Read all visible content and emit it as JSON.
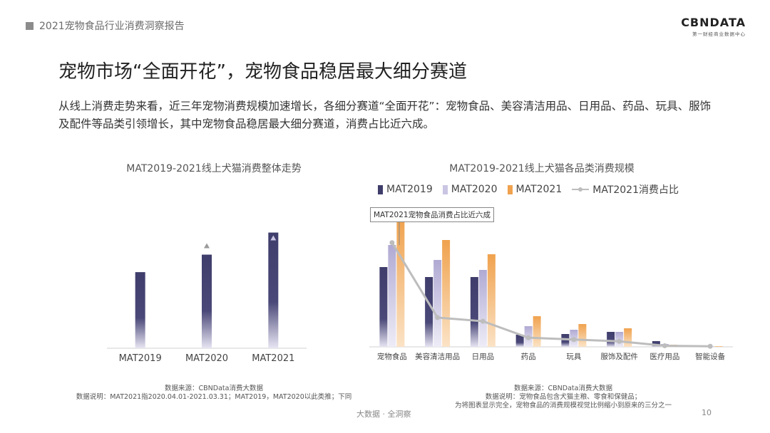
{
  "header": {
    "report_title": "2021宠物食品行业消费洞察报告"
  },
  "brand": {
    "logo_text": "CBNDATA",
    "tagline": "第一财经商业数据中心"
  },
  "slide": {
    "title": "宠物市场“全面开花”，宠物食品稳居最大细分赛道",
    "description": "从线上消费走势来看，近三年宠物消费规模加速增长，各细分赛道“全面开花”：宠物食品、美容清洁用品、日用品、药品、玩具、服饰及配件等品类引领增长，其中宠物食品稳居最大细分赛道，消费占比近六成。"
  },
  "colors": {
    "mat2019": "#3f3d6b",
    "mat2020": "#b8b3d6",
    "mat2021": "#f0a24e",
    "share_line": "#bdbdbd",
    "axis": "#d0d0d0"
  },
  "chart_data": [
    {
      "type": "bar",
      "title": "MAT2019-2021线上犬猫消费整体走势",
      "categories": [
        "MAT2019",
        "MAT2020",
        "MAT2021"
      ],
      "values": [
        100,
        123,
        152
      ],
      "ylim": [
        0,
        160
      ],
      "growth_markers": [
        "MAT2020",
        "MAT2021"
      ],
      "grid": false
    },
    {
      "type": "bar",
      "title": "MAT2019-2021线上犬猫各品类消费规模",
      "categories": [
        "宠物食品",
        "美容清洁用品",
        "日用品",
        "药品",
        "玩具",
        "服饰及配件",
        "医疗用品",
        "智能设备"
      ],
      "series": [
        {
          "name": "MAT2019",
          "values": [
            112,
            98,
            98,
            17,
            18,
            21,
            8,
            1
          ]
        },
        {
          "name": "MAT2020",
          "values": [
            143,
            122,
            108,
            29,
            24,
            21,
            4,
            1
          ]
        },
        {
          "name": "MAT2021",
          "values": [
            180,
            150,
            130,
            43,
            32,
            26,
            3,
            1
          ]
        }
      ],
      "line_series": {
        "name": "MAT2021消费占比",
        "values": [
          57,
          16,
          14,
          5,
          4,
          3,
          0.6,
          0.3
        ]
      },
      "ylim": [
        0,
        180
      ],
      "legend_position": "top",
      "annotation": "MAT2021宠物食品消费占比近六成",
      "grid": false
    }
  ],
  "notes": {
    "left": [
      "数据来源：CBNData消费大数据",
      "数据说明：MAT2021指2020.04.01-2021.03.31；MAT2019，MAT2020以此类推；下同"
    ],
    "right": [
      "数据来源：CBNData消费大数据",
      "数据说明：宠物食品包含犬猫主粮、零食和保健品；",
      "为将图表显示完全，宠物食品的消费规模视觉比例缩小到原来的三分之一"
    ]
  },
  "footer": {
    "tagline": "大数据 · 全洞察",
    "page_number": "10"
  }
}
